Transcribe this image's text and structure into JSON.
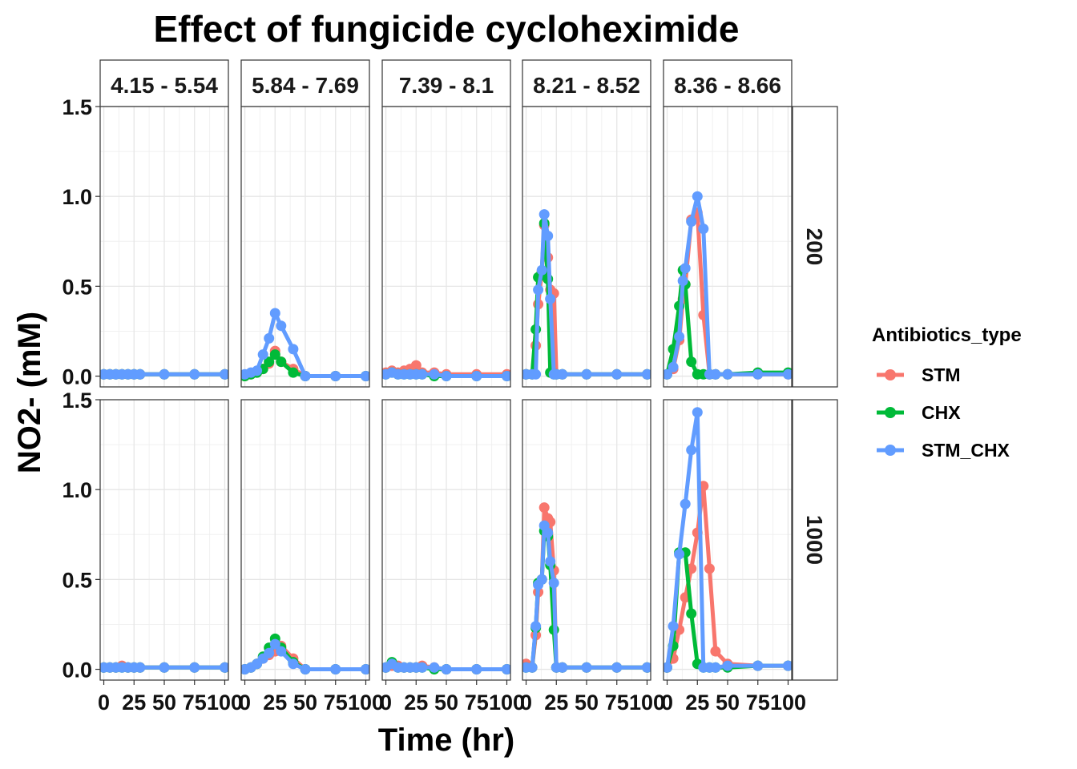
{
  "chart_data": {
    "type": "line",
    "title": "Effect of fungicide cycloheximide",
    "xlabel": "Time (hr)",
    "ylabel": "NO2- (mM)",
    "xlim": [
      -3,
      103
    ],
    "ylim": [
      -0.06,
      1.5
    ],
    "x_ticks": [
      0,
      25,
      50,
      75,
      100
    ],
    "x_tick_labels": [
      "0",
      "25",
      "50",
      "75",
      "100"
    ],
    "y_ticks": [
      0,
      0.5,
      1,
      1.5
    ],
    "y_tick_labels": [
      "0.0",
      "0.5",
      "1.0",
      "1.5"
    ],
    "grid": true,
    "column_facets": [
      "4.15 - 5.54",
      "5.84 - 7.69",
      "7.39 - 8.1",
      "8.21 - 8.52",
      "8.36 - 8.66"
    ],
    "row_facets": [
      "200",
      "1000"
    ],
    "legend": {
      "title": "Antibiotics_type",
      "position": "right",
      "entries": [
        "STM",
        "CHX",
        "STM_CHX"
      ]
    },
    "series_colors": {
      "STM": "#F8766D",
      "CHX": "#00BA38",
      "STM_CHX": "#619CFF"
    },
    "panels": [
      {
        "row": 0,
        "col": 0,
        "series": [
          {
            "name": "STM",
            "x": [
              0,
              5,
              10,
              15,
              20,
              25,
              30,
              50,
              75,
              100
            ],
            "y": [
              0.01,
              0.01,
              0.01,
              0.01,
              0.01,
              0.01,
              0.01,
              0.01,
              0.01,
              0.01
            ]
          },
          {
            "name": "CHX",
            "x": [
              0,
              5,
              10,
              15,
              20,
              25,
              30,
              50,
              75,
              100
            ],
            "y": [
              0.01,
              0.01,
              0.01,
              0.01,
              0.01,
              0.01,
              0.01,
              0.01,
              0.01,
              0.01
            ]
          },
          {
            "name": "STM_CHX",
            "x": [
              0,
              5,
              10,
              15,
              20,
              25,
              30,
              50,
              75,
              100
            ],
            "y": [
              0.01,
              0.01,
              0.01,
              0.01,
              0.01,
              0.01,
              0.01,
              0.01,
              0.01,
              0.01
            ]
          }
        ]
      },
      {
        "row": 0,
        "col": 1,
        "series": [
          {
            "name": "STM",
            "x": [
              0,
              5,
              10,
              15,
              20,
              25,
              30,
              40,
              50,
              75,
              100
            ],
            "y": [
              0.0,
              0.01,
              0.02,
              0.04,
              0.07,
              0.14,
              0.08,
              0.04,
              0.0,
              0.0,
              0.0
            ]
          },
          {
            "name": "CHX",
            "x": [
              0,
              5,
              10,
              15,
              20,
              25,
              30,
              40,
              50,
              75,
              100
            ],
            "y": [
              0.0,
              0.01,
              0.02,
              0.04,
              0.08,
              0.12,
              0.08,
              0.02,
              0.0,
              0.0,
              0.0
            ]
          },
          {
            "name": "STM_CHX",
            "x": [
              0,
              5,
              10,
              15,
              20,
              25,
              30,
              40,
              50,
              75,
              100
            ],
            "y": [
              0.01,
              0.02,
              0.03,
              0.12,
              0.21,
              0.35,
              0.28,
              0.15,
              0.0,
              0.0,
              0.0
            ]
          }
        ]
      },
      {
        "row": 0,
        "col": 2,
        "series": [
          {
            "name": "STM",
            "x": [
              0,
              5,
              10,
              15,
              20,
              25,
              30,
              40,
              50,
              75,
              100
            ],
            "y": [
              0.02,
              0.03,
              0.02,
              0.03,
              0.04,
              0.06,
              0.02,
              0.02,
              0.01,
              0.01,
              0.01
            ]
          },
          {
            "name": "CHX",
            "x": [
              0,
              5,
              10,
              15,
              20,
              25,
              30,
              40,
              50,
              75,
              100
            ],
            "y": [
              0.01,
              0.02,
              0.01,
              0.01,
              0.01,
              0.01,
              0.01,
              0.0,
              0.0,
              0.0,
              0.0
            ]
          },
          {
            "name": "STM_CHX",
            "x": [
              0,
              5,
              10,
              15,
              20,
              25,
              30,
              40,
              50,
              75,
              100
            ],
            "y": [
              0.01,
              0.02,
              0.01,
              0.01,
              0.01,
              0.01,
              0.01,
              0.01,
              0.0,
              0.0,
              0.0
            ]
          }
        ]
      },
      {
        "row": 0,
        "col": 3,
        "series": [
          {
            "name": "STM",
            "x": [
              0,
              5,
              8,
              10,
              13,
              15,
              18,
              20,
              23,
              25,
              30,
              50,
              75,
              100
            ],
            "y": [
              0.01,
              0.01,
              0.17,
              0.4,
              0.58,
              0.84,
              0.66,
              0.48,
              0.46,
              0.01,
              0.01,
              0.01,
              0.01,
              0.01
            ]
          },
          {
            "name": "CHX",
            "x": [
              0,
              5,
              8,
              10,
              13,
              15,
              18,
              20,
              23,
              25,
              30,
              50,
              75,
              100
            ],
            "y": [
              0.01,
              0.01,
              0.26,
              0.55,
              0.58,
              0.85,
              0.54,
              0.02,
              0.01,
              0.01,
              0.01,
              0.01,
              0.01,
              0.01
            ]
          },
          {
            "name": "STM_CHX",
            "x": [
              0,
              5,
              8,
              10,
              13,
              15,
              18,
              20,
              23,
              25,
              30,
              50,
              75,
              100
            ],
            "y": [
              0.01,
              0.01,
              0.01,
              0.48,
              0.59,
              0.9,
              0.78,
              0.43,
              0.01,
              0.01,
              0.01,
              0.01,
              0.01,
              0.01
            ]
          }
        ]
      },
      {
        "row": 0,
        "col": 4,
        "series": [
          {
            "name": "STM",
            "x": [
              0,
              5,
              10,
              13,
              15,
              20,
              25,
              30,
              35,
              40,
              50,
              75,
              100
            ],
            "y": [
              0.01,
              0.04,
              0.2,
              0.43,
              0.51,
              0.87,
              0.91,
              0.34,
              0.01,
              0.01,
              0.01,
              0.01,
              0.01
            ]
          },
          {
            "name": "CHX",
            "x": [
              0,
              5,
              10,
              13,
              15,
              20,
              25,
              30,
              35,
              40,
              50,
              75,
              100
            ],
            "y": [
              0.01,
              0.15,
              0.39,
              0.59,
              0.51,
              0.08,
              0.01,
              0.01,
              0.01,
              0.01,
              0.01,
              0.02,
              0.02
            ]
          },
          {
            "name": "STM_CHX",
            "x": [
              0,
              5,
              10,
              13,
              15,
              20,
              25,
              30,
              35,
              40,
              50,
              75,
              100
            ],
            "y": [
              0.01,
              0.05,
              0.22,
              0.53,
              0.6,
              0.86,
              1.0,
              0.82,
              0.01,
              0.01,
              0.01,
              0.01,
              0.01
            ]
          }
        ]
      },
      {
        "row": 1,
        "col": 0,
        "series": [
          {
            "name": "STM",
            "x": [
              0,
              5,
              10,
              15,
              20,
              25,
              30,
              50,
              75,
              100
            ],
            "y": [
              0.01,
              0.01,
              0.01,
              0.02,
              0.01,
              0.01,
              0.01,
              0.01,
              0.01,
              0.01
            ]
          },
          {
            "name": "CHX",
            "x": [
              0,
              5,
              10,
              15,
              20,
              25,
              30,
              50,
              75,
              100
            ],
            "y": [
              0.01,
              0.01,
              0.01,
              0.01,
              0.01,
              0.01,
              0.01,
              0.01,
              0.01,
              0.01
            ]
          },
          {
            "name": "STM_CHX",
            "x": [
              0,
              5,
              10,
              15,
              20,
              25,
              30,
              50,
              75,
              100
            ],
            "y": [
              0.01,
              0.01,
              0.01,
              0.01,
              0.01,
              0.01,
              0.01,
              0.01,
              0.01,
              0.01
            ]
          }
        ]
      },
      {
        "row": 1,
        "col": 1,
        "series": [
          {
            "name": "STM",
            "x": [
              0,
              5,
              10,
              15,
              20,
              25,
              30,
              40,
              50,
              75,
              100
            ],
            "y": [
              0.0,
              0.01,
              0.03,
              0.06,
              0.08,
              0.1,
              0.13,
              0.06,
              0.0,
              0.0,
              0.0
            ]
          },
          {
            "name": "CHX",
            "x": [
              0,
              5,
              10,
              15,
              20,
              25,
              30,
              40,
              50,
              75,
              100
            ],
            "y": [
              0.0,
              0.01,
              0.03,
              0.07,
              0.12,
              0.17,
              0.12,
              0.04,
              0.0,
              0.0,
              0.0
            ]
          },
          {
            "name": "STM_CHX",
            "x": [
              0,
              5,
              10,
              15,
              20,
              25,
              30,
              40,
              50,
              75,
              100
            ],
            "y": [
              0.0,
              0.01,
              0.03,
              0.06,
              0.09,
              0.14,
              0.1,
              0.03,
              0.0,
              0.0,
              0.0
            ]
          }
        ]
      },
      {
        "row": 1,
        "col": 2,
        "series": [
          {
            "name": "STM",
            "x": [
              0,
              5,
              10,
              15,
              20,
              25,
              30,
              40,
              50,
              75,
              100
            ],
            "y": [
              0.01,
              0.02,
              0.02,
              0.01,
              0.01,
              0.01,
              0.02,
              0.01,
              0.0,
              0.0,
              0.0
            ]
          },
          {
            "name": "CHX",
            "x": [
              0,
              5,
              10,
              15,
              20,
              25,
              30,
              40,
              50,
              75,
              100
            ],
            "y": [
              0.01,
              0.04,
              0.01,
              0.01,
              0.01,
              0.01,
              0.01,
              0.0,
              0.0,
              0.0,
              0.0
            ]
          },
          {
            "name": "STM_CHX",
            "x": [
              0,
              5,
              10,
              15,
              20,
              25,
              30,
              40,
              50,
              75,
              100
            ],
            "y": [
              0.01,
              0.03,
              0.01,
              0.01,
              0.01,
              0.01,
              0.01,
              0.01,
              0.0,
              0.0,
              0.0
            ]
          }
        ]
      },
      {
        "row": 1,
        "col": 3,
        "series": [
          {
            "name": "STM",
            "x": [
              0,
              5,
              8,
              10,
              13,
              15,
              18,
              20,
              23,
              25,
              30,
              50,
              75,
              100
            ],
            "y": [
              0.03,
              0.01,
              0.19,
              0.43,
              0.5,
              0.9,
              0.84,
              0.82,
              0.55,
              0.01,
              0.01,
              0.01,
              0.01,
              0.01
            ]
          },
          {
            "name": "CHX",
            "x": [
              0,
              5,
              8,
              10,
              13,
              15,
              18,
              20,
              23,
              25,
              30,
              50,
              75,
              100
            ],
            "y": [
              0.01,
              0.01,
              0.23,
              0.48,
              0.5,
              0.77,
              0.74,
              0.58,
              0.22,
              0.01,
              0.01,
              0.01,
              0.01,
              0.01
            ]
          },
          {
            "name": "STM_CHX",
            "x": [
              0,
              5,
              8,
              10,
              13,
              15,
              18,
              20,
              23,
              25,
              30,
              50,
              75,
              100
            ],
            "y": [
              0.01,
              0.01,
              0.24,
              0.47,
              0.5,
              0.8,
              0.76,
              0.6,
              0.48,
              0.01,
              0.01,
              0.01,
              0.01,
              0.01
            ]
          }
        ]
      },
      {
        "row": 1,
        "col": 4,
        "series": [
          {
            "name": "STM",
            "x": [
              0,
              5,
              10,
              15,
              20,
              25,
              30,
              35,
              40,
              50,
              75,
              100
            ],
            "y": [
              0.01,
              0.06,
              0.22,
              0.4,
              0.56,
              0.76,
              1.02,
              0.56,
              0.1,
              0.03,
              0.02,
              0.02
            ]
          },
          {
            "name": "CHX",
            "x": [
              0,
              5,
              10,
              15,
              20,
              25,
              30,
              35,
              40,
              50,
              75,
              100
            ],
            "y": [
              0.01,
              0.13,
              0.65,
              0.65,
              0.31,
              0.03,
              0.01,
              0.01,
              0.01,
              0.01,
              0.02,
              0.02
            ]
          },
          {
            "name": "STM_CHX",
            "x": [
              0,
              5,
              10,
              15,
              20,
              25,
              30,
              35,
              40,
              50,
              75,
              100
            ],
            "y": [
              0.01,
              0.24,
              0.64,
              0.92,
              1.22,
              1.43,
              0.01,
              0.01,
              0.01,
              0.02,
              0.02,
              0.02
            ]
          }
        ]
      }
    ]
  }
}
